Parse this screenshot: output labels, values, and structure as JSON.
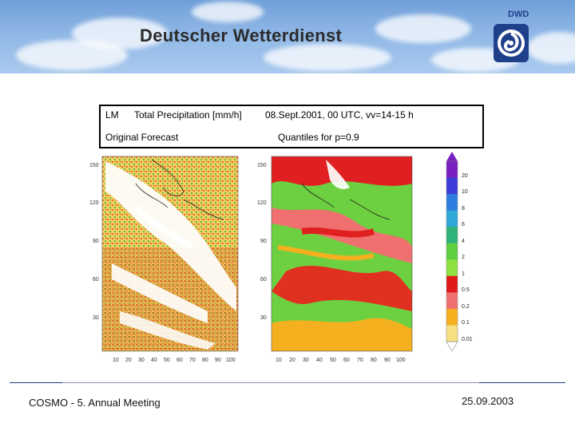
{
  "header": {
    "title": "Deutscher Wetterdienst",
    "logo_text": "DWD",
    "logo_icon": "dwd-swirl-logo-icon"
  },
  "info": {
    "model": "LM",
    "variable": "Total Precipitation [mm/h]",
    "date": "08.Sept.2001, 00 UTC, vv=14-15 h",
    "left_caption": "Original Forecast",
    "right_caption": "Quantiles for p=0.9"
  },
  "axes": {
    "y_ticks": [
      "150",
      "120",
      "90",
      "60",
      "30"
    ],
    "x_ticks": [
      "10",
      "20",
      "30",
      "40",
      "50",
      "60",
      "70",
      "80",
      "90",
      "100"
    ]
  },
  "colorbar": {
    "labels": [
      "20",
      "10",
      "8",
      "6",
      "4",
      "2",
      "1",
      "0.5",
      "0.2",
      "0.1",
      "0.01"
    ],
    "colors": [
      "#7a1fc0",
      "#3c3cd8",
      "#2f7de0",
      "#2fa8d8",
      "#2fb37a",
      "#5fcf40",
      "#8ee040",
      "#e01818",
      "#f07070",
      "#f5b020",
      "#f7e080"
    ]
  },
  "footer": {
    "meeting": "COSMO - 5. Annual Meeting",
    "date": "25.09.2003"
  }
}
